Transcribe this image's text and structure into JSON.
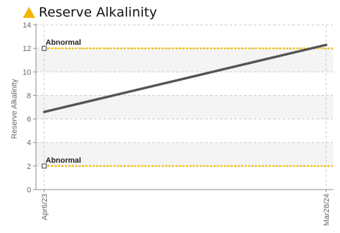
{
  "chart_data": {
    "type": "line",
    "title": "Reserve Alkalinity",
    "title_icon": "warning-triangle-icon",
    "ylabel": "Reserve Alkalinity",
    "xlabel": "",
    "ylim": [
      0,
      14
    ],
    "y_ticks": [
      "0",
      "2",
      "4",
      "6",
      "8",
      "10",
      "12",
      "14"
    ],
    "x_ticks": [
      "Apr6/23",
      "Mar28/24"
    ],
    "x": [
      "Apr6/23",
      "Mar28/24"
    ],
    "series": [
      {
        "values": [
          6.6,
          12.3
        ],
        "color": "#555555"
      }
    ],
    "thresholds": [
      {
        "label": "Abnormal",
        "value": 12,
        "color": "#f0c419"
      },
      {
        "label": "Abnormal",
        "value": 2,
        "color": "#f0c419"
      }
    ],
    "grid": true,
    "legend": "none",
    "colors": {
      "icon": "#f5b400",
      "band": "#f4f4f4",
      "grid": "#cccccc",
      "axis": "#888888"
    }
  }
}
